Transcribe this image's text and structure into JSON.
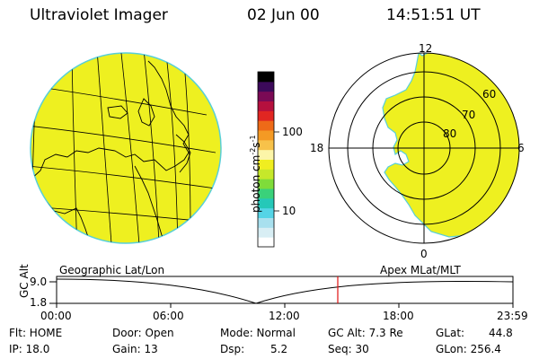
{
  "header": {
    "title": "Ultraviolet Imager",
    "date": "02 Jun 00",
    "time": "14:51:51 UT"
  },
  "colorbar": {
    "label_main": "photon cm",
    "label_exp1": "-2",
    "label_mid": "s",
    "label_exp2": "-1",
    "tick_100": "100",
    "tick_10": "10",
    "colors": [
      "#ffffff",
      "#d8eef4",
      "#a8e0ee",
      "#55d4e6",
      "#25c8b8",
      "#3ad17a",
      "#7fdc3a",
      "#c6e82a",
      "#f0ee20",
      "#fcf5a8",
      "#f7c24a",
      "#f49a24",
      "#ee6a18",
      "#e12622",
      "#b5103e",
      "#7a0a55",
      "#3c0a5a",
      "#000000"
    ]
  },
  "polar_plot": {
    "labels": {
      "top": "12",
      "left": "18",
      "right": "6",
      "bottom": "0"
    },
    "lat_labels": [
      "60",
      "70",
      "80"
    ]
  },
  "timeline": {
    "left_caption": "Geographic Lat/Lon",
    "right_caption": "Apex MLat/MLT",
    "y_label": "GC Alt",
    "y_ticks": [
      "9.0",
      "1.8"
    ],
    "x_ticks": [
      "00:00",
      "06:00",
      "12:00",
      "18:00",
      "23:59"
    ],
    "marker_color": "#e01010"
  },
  "status": {
    "flt": "Flt: HOME",
    "ip": "IP: 18.0",
    "door": "Door: Open",
    "gain": "Gain: 13",
    "mode": "Mode: Normal",
    "dsp": "Dsp:",
    "dsp_val": "5.2",
    "gcalt": "GC Alt: 7.3 Re",
    "seq": "Seq: 30",
    "glat": "GLat:",
    "glat_val": "44.8",
    "glon": "GLon: 256.4"
  },
  "image_fill_color": "#eef020"
}
